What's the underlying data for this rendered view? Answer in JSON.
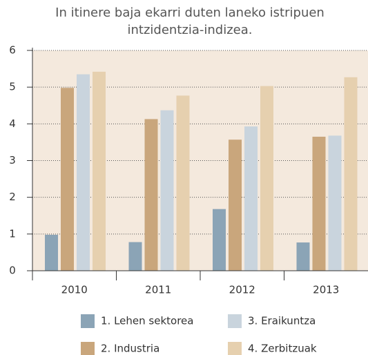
{
  "chart_data": {
    "type": "bar",
    "title": "In itinere baja ekarri duten laneko istripuen intzidentzia-indizea.",
    "categories": [
      "2010",
      "2011",
      "2012",
      "2013"
    ],
    "series": [
      {
        "name": "1. Lehen sektorea",
        "color": "#8ba4b6",
        "values": [
          0.98,
          0.78,
          1.68,
          0.77
        ]
      },
      {
        "name": "2. Industria",
        "color": "#c9a67c",
        "values": [
          4.98,
          4.13,
          3.57,
          3.65
        ]
      },
      {
        "name": "3. Eraikuntza",
        "color": "#c9d4dd",
        "values": [
          5.35,
          4.37,
          3.93,
          3.68
        ]
      },
      {
        "name": "4. Zerbitzuak",
        "color": "#e6d0af",
        "values": [
          5.42,
          4.77,
          5.03,
          5.27
        ]
      }
    ],
    "ylim": [
      0,
      6
    ],
    "yticks": [
      0,
      1,
      2,
      3,
      4,
      5,
      6
    ],
    "grid": true,
    "legend": "bottom"
  }
}
